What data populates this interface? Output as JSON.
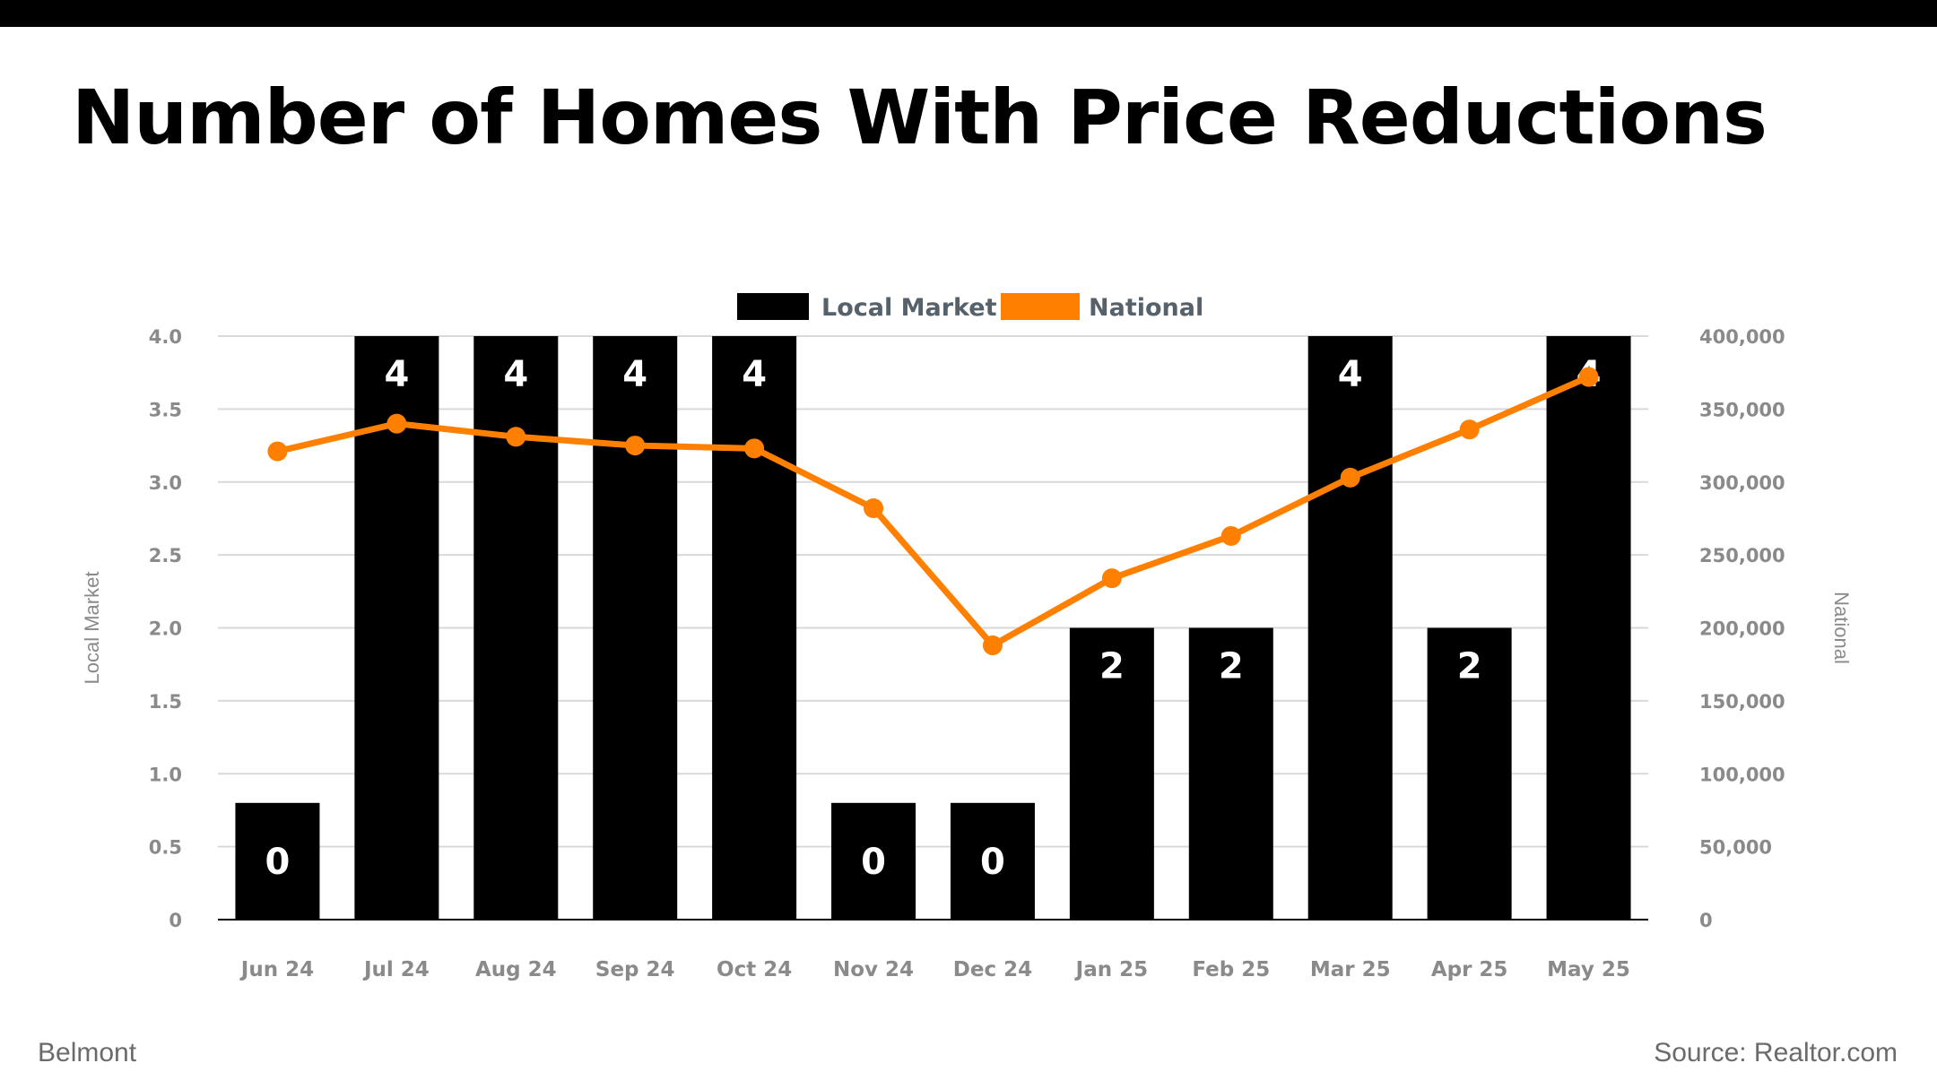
{
  "title": "Number of Homes With Price Reductions",
  "footer": {
    "location": "Belmont",
    "source": "Source: Realtor.com"
  },
  "colors": {
    "bar": "#000000",
    "line": "#ff8000",
    "grid": "#d9d9d9",
    "axis": "#000000"
  },
  "chart_data": {
    "type": "bar",
    "title": "Number of Homes With Price Reductions",
    "categories": [
      "Jun 24",
      "Jul 24",
      "Aug 24",
      "Sep 24",
      "Oct 24",
      "Nov 24",
      "Dec 24",
      "Jan 25",
      "Feb 25",
      "Mar 25",
      "Apr 25",
      "May 25"
    ],
    "series": [
      {
        "name": "Local Market",
        "type": "bar",
        "axis": "left",
        "values": [
          0,
          4,
          4,
          4,
          4,
          0,
          0,
          2,
          2,
          4,
          2,
          4
        ],
        "labels": [
          "0",
          "4",
          "4",
          "4",
          "4",
          "0",
          "0",
          "2",
          "2",
          "4",
          "2",
          "4"
        ]
      },
      {
        "name": "National",
        "type": "line",
        "axis": "right",
        "values": [
          321000,
          340000,
          331000,
          325000,
          323000,
          282000,
          188000,
          234000,
          263000,
          303000,
          336000,
          372000
        ]
      }
    ],
    "ylabel": "Local Market",
    "ylabel_right": "National",
    "ylim": [
      0,
      4
    ],
    "ylim_right": [
      0,
      400000
    ],
    "yticks": [
      "0",
      "0.5",
      "1.0",
      "1.5",
      "2.0",
      "2.5",
      "3.0",
      "3.5",
      "4.0"
    ],
    "yticks_right": [
      "0",
      "50,000",
      "100,000",
      "150,000",
      "200,000",
      "250,000",
      "300,000",
      "350,000",
      "400,000"
    ],
    "legend_position": "top-center",
    "grid": true
  }
}
